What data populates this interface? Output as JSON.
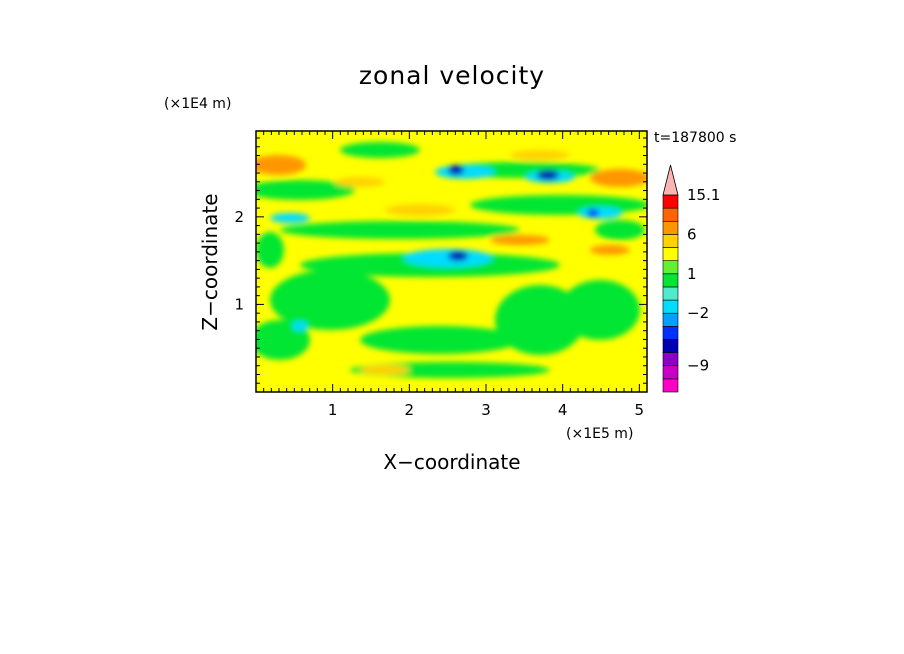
{
  "chart_data": {
    "type": "heatmap",
    "title": "zonal velocity",
    "xlabel": "X−coordinate",
    "ylabel": "Z−coordinate",
    "x_unit": "(×1E5 m)",
    "y_unit": "(×1E4 m)",
    "time_label": "t=187800 s",
    "xlim": [
      0,
      5.1
    ],
    "ylim": [
      0,
      2.98
    ],
    "x_ticks": [
      1,
      2,
      3,
      4,
      5
    ],
    "y_ticks": [
      1,
      2
    ],
    "x_tick_labels": [
      "1",
      "2",
      "3",
      "4",
      "5"
    ],
    "y_tick_labels": [
      "1",
      "2"
    ],
    "colorbar": {
      "labels": [
        "15.1",
        "6",
        "1",
        "−2",
        "−9"
      ],
      "label_values": [
        15.1,
        6,
        1,
        -2,
        -9
      ],
      "levels": [
        -13,
        -11,
        -9,
        -7,
        -5,
        -3,
        -2,
        -1,
        0,
        1,
        2,
        3,
        6,
        9,
        12,
        15.1
      ],
      "colors": [
        "#ff00c8",
        "#c800c8",
        "#8c00c8",
        "#0000b4",
        "#0032ff",
        "#00a0ff",
        "#00dcff",
        "#50ebc8",
        "#00e632",
        "#64f032",
        "#ffff00",
        "#ffd200",
        "#ff9600",
        "#ff6400",
        "#ff0000",
        "#ff6464",
        "#ffb4b4"
      ]
    },
    "value_range": [
      -13,
      15.1
    ],
    "grid": false
  }
}
